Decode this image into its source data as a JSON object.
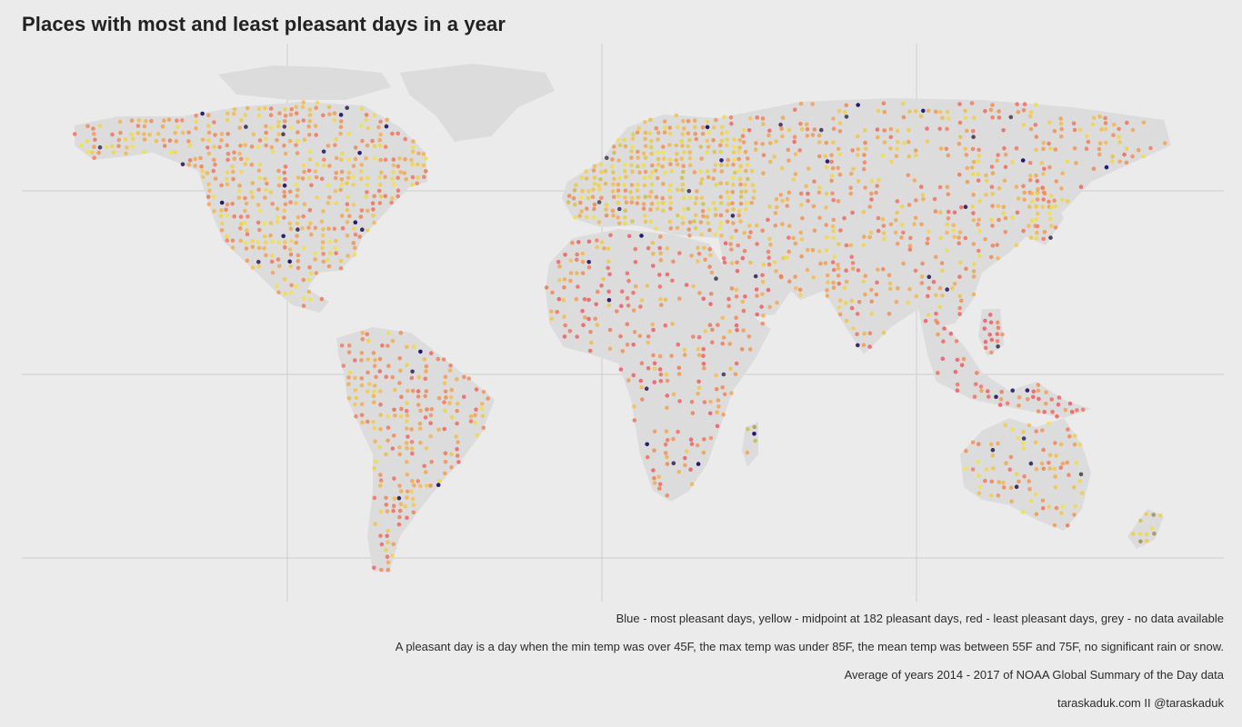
{
  "title": "Places with most and least pleasant days in a year",
  "captions": {
    "legend": "Blue - most pleasant days, yellow - midpoint at 182 pleasant days, red - least pleasant days, grey - no data available",
    "definition": "A pleasant day is a day when the min temp was over 45F, the max temp was under 85F, the mean temp was between 55F and 75F, no significant rain or snow.",
    "source": "Average of years 2014 - 2017 of NOAA Global Summary of the Day data",
    "credit": "taraskaduk.com II @taraskaduk"
  },
  "colors": {
    "background": "#ebebeb",
    "grid": "#cccccc",
    "no_data": "#dcdcdc",
    "most_pleasant": "#1a0a6b",
    "midpoint": "#f4e63a",
    "least_pleasant": "#f0525e"
  },
  "scale": {
    "min_days": 0,
    "midpoint_days": 182,
    "max_days": 365
  }
}
